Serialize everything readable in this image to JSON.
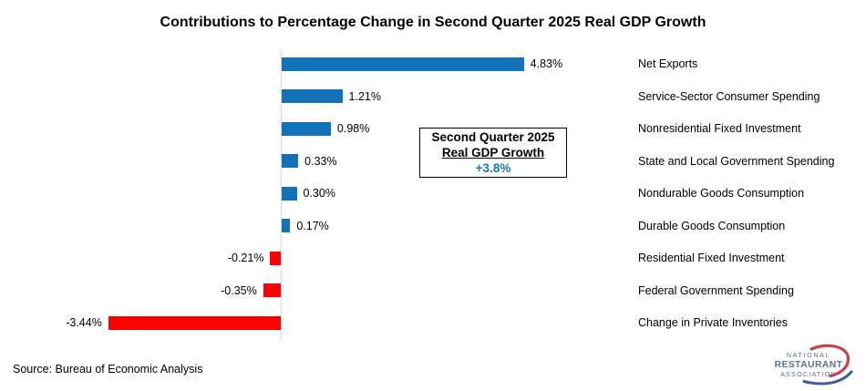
{
  "chart_data": {
    "type": "bar",
    "orientation": "horizontal",
    "title": "Contributions to Percentage Change in Second Quarter 2025 Real GDP Growth",
    "categories": [
      "Net Exports",
      "Service-Sector Consumer Spending",
      "Nonresidential Fixed Investment",
      "State and Local Government Spending",
      "Nondurable Goods Consumption",
      "Durable Goods Consumption",
      "Residential Fixed Investment",
      "Federal Government Spending",
      "Change in Private Inventories"
    ],
    "values": [
      4.83,
      1.21,
      0.98,
      0.33,
      0.3,
      0.17,
      -0.21,
      -0.35,
      -3.44
    ],
    "value_labels": [
      "4.83%",
      "1.21%",
      "0.98%",
      "0.33%",
      "0.30%",
      "0.17%",
      "-0.21%",
      "-0.35%",
      "-3.44%"
    ],
    "positive_color": "#1172BA",
    "negative_color": "#FE0000",
    "axis_color": "#D9D9D9",
    "legend": "none",
    "grid": "off",
    "xlim": [
      -3.44,
      4.83
    ]
  },
  "annotation_box": {
    "line1": "Second Quarter 2025",
    "line2": "Real GDP Growth",
    "line3": "+3.8%",
    "value_color": "#1B75BC"
  },
  "source": "Source: Bureau of Economic Analysis",
  "logo": {
    "line1": "NATIONAL",
    "line2": "RESTAURANT",
    "line3": "ASSOCIATION",
    "text_color": "#5D7291",
    "red_swoosh_color": "#C8414B",
    "blue_swoosh_color": "#3D5C9E"
  }
}
